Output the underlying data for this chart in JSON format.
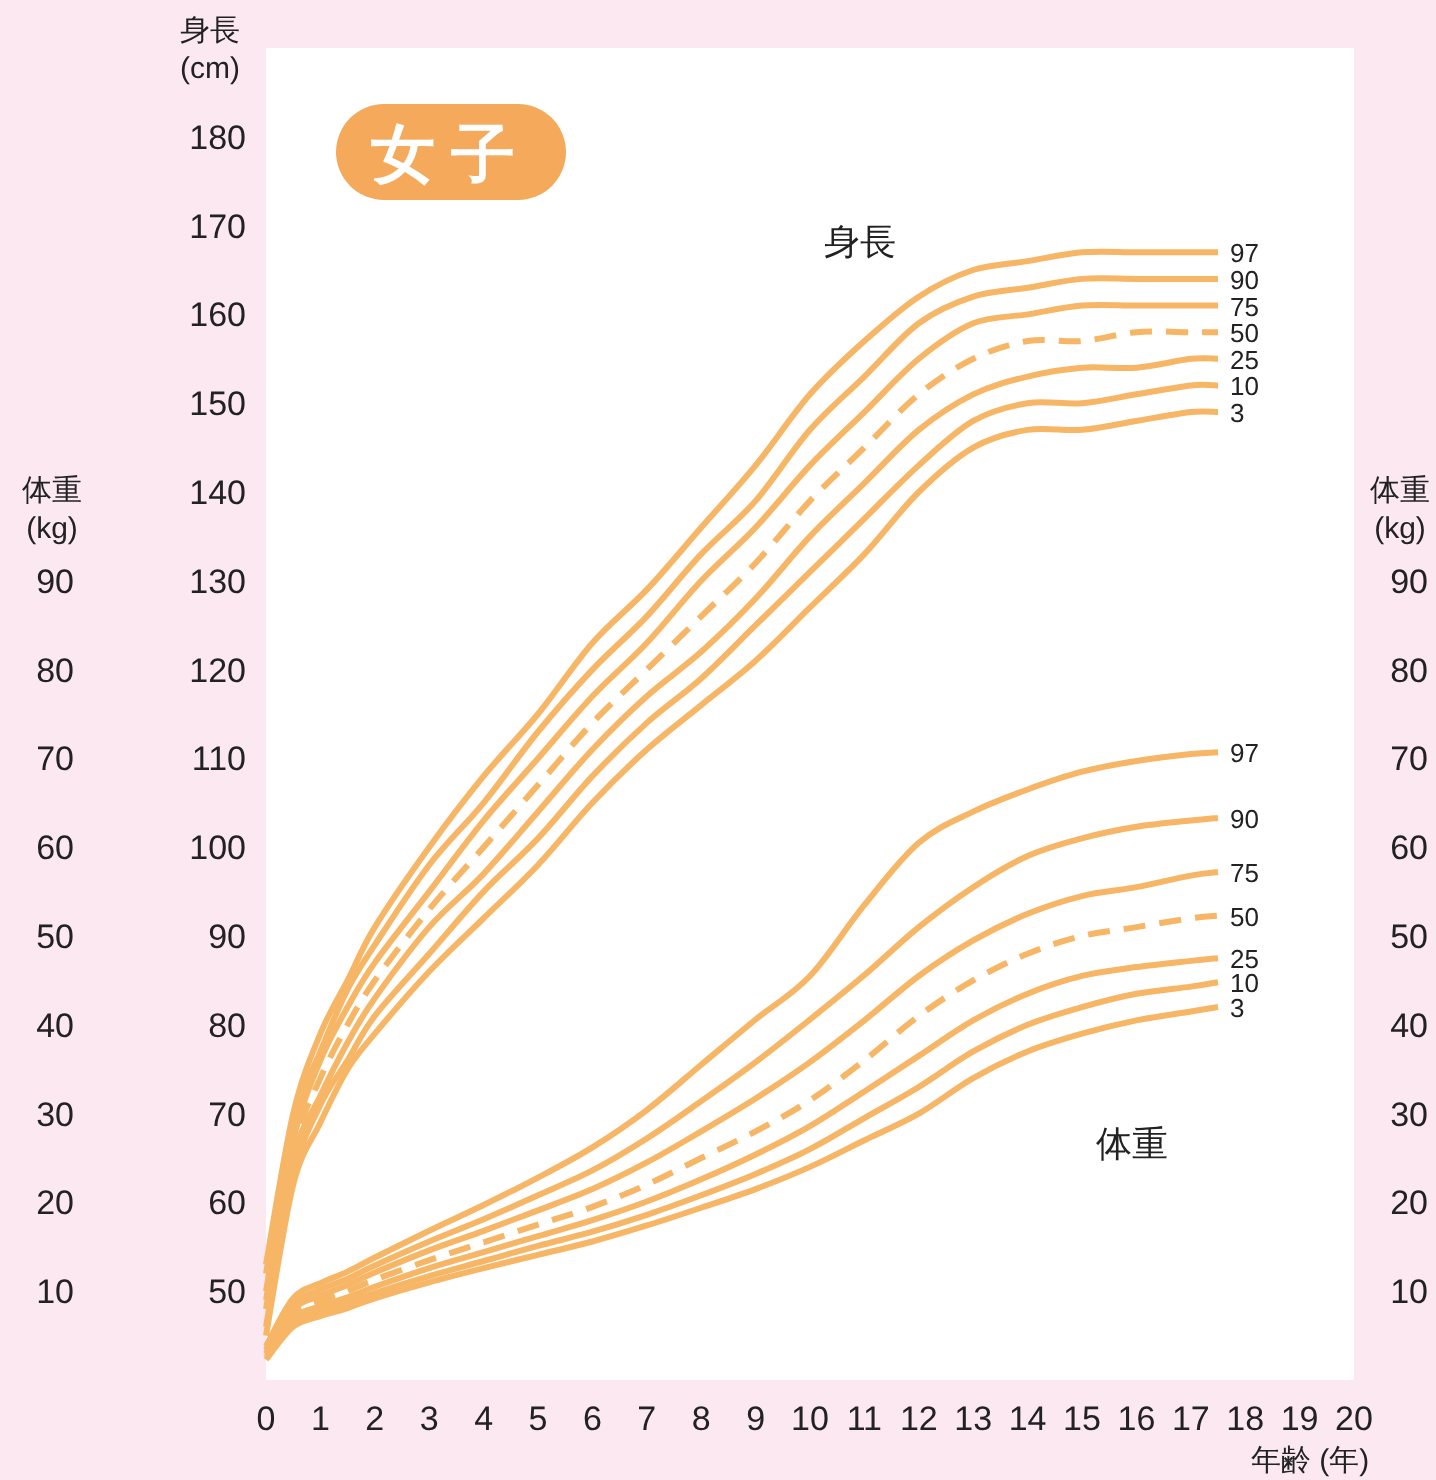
{
  "chart_data": {
    "type": "line",
    "title": "女子",
    "xlabel": "年齢 (年)",
    "ylabel": "身長\n(cm)",
    "y2label": "体重\n(kg)",
    "y3label": "体重\n(kg)",
    "x": [
      0,
      0.5,
      1,
      1.5,
      2,
      3,
      4,
      5,
      6,
      7,
      8,
      9,
      10,
      11,
      12,
      13,
      14,
      15,
      16,
      17,
      17.5
    ],
    "xlim": [
      0,
      20
    ],
    "xticks": [
      0,
      1,
      2,
      3,
      4,
      5,
      6,
      7,
      8,
      9,
      10,
      11,
      12,
      13,
      14,
      15,
      16,
      17,
      18,
      19,
      20
    ],
    "ylim": [
      40,
      190
    ],
    "yticks": [
      50,
      60,
      70,
      80,
      90,
      100,
      110,
      120,
      130,
      140,
      150,
      160,
      170,
      180
    ],
    "y2lim": [
      0,
      150
    ],
    "y2ticks": [
      10,
      20,
      30,
      40,
      50,
      60,
      70,
      80,
      90
    ],
    "y3lim": [
      0,
      150
    ],
    "y3ticks": [
      10,
      20,
      30,
      40,
      50,
      60,
      70,
      80,
      90
    ],
    "legend": false,
    "grid": false,
    "annotations": [
      "身長",
      "体重"
    ],
    "series": [
      {
        "name": "97",
        "color": "#f6b665",
        "axis": "y",
        "line_style": "solid",
        "values": [
          53,
          70,
          79,
          85,
          91,
          100,
          108,
          115,
          123,
          129,
          136,
          143,
          151,
          157,
          162,
          165,
          166,
          167,
          167,
          167,
          167
        ]
      },
      {
        "name": "90",
        "color": "#f6b665",
        "axis": "y",
        "line_style": "solid",
        "values": [
          52,
          69,
          77,
          84,
          89,
          98,
          105,
          113,
          120,
          126,
          133,
          139,
          147,
          153,
          159,
          162,
          163,
          164,
          164,
          164,
          164
        ]
      },
      {
        "name": "75",
        "color": "#f6b665",
        "axis": "y",
        "line_style": "solid",
        "values": [
          50,
          67,
          76,
          82,
          87,
          95,
          103,
          110,
          117,
          123,
          130,
          136,
          143,
          149,
          155,
          159,
          160,
          161,
          161,
          161,
          161
        ]
      },
      {
        "name": "50",
        "color": "#f6b665",
        "axis": "y",
        "line_style": "dashed",
        "values": [
          49,
          66,
          74,
          80,
          85,
          93,
          100,
          107,
          114,
          120,
          126,
          132,
          139,
          145,
          151,
          155,
          157,
          157,
          158,
          158,
          158
        ]
      },
      {
        "name": "25",
        "color": "#f6b665",
        "axis": "y",
        "line_style": "solid",
        "values": [
          48,
          65,
          72,
          78,
          83,
          91,
          97,
          104,
          111,
          117,
          122,
          128,
          135,
          141,
          147,
          151,
          153,
          154,
          154,
          155,
          155
        ]
      },
      {
        "name": "10",
        "color": "#f6b665",
        "axis": "y",
        "line_style": "solid",
        "values": [
          46,
          63,
          71,
          76,
          81,
          88,
          95,
          101,
          108,
          114,
          119,
          125,
          131,
          137,
          143,
          148,
          150,
          150,
          151,
          152,
          152
        ]
      },
      {
        "name": "3",
        "color": "#f6b665",
        "axis": "y",
        "line_style": "solid",
        "values": [
          45,
          62,
          69,
          75,
          79,
          86,
          92,
          98,
          105,
          111,
          116,
          121,
          127,
          133,
          140,
          145,
          147,
          147,
          148,
          149,
          149
        ]
      },
      {
        "name": "97",
        "color": "#f6b665",
        "axis": "y2",
        "line_style": "solid",
        "values": [
          3.8,
          9.2,
          10.9,
          12.2,
          13.8,
          16.8,
          19.7,
          22.8,
          26.2,
          30.4,
          35.5,
          40.6,
          45.5,
          53.5,
          60.5,
          64,
          66.5,
          68.5,
          69.7,
          70.5,
          70.7
        ]
      },
      {
        "name": "90",
        "color": "#f6b665",
        "axis": "y2",
        "line_style": "solid",
        "values": [
          3.5,
          8.5,
          10.2,
          11.4,
          12.9,
          15.6,
          18.1,
          20.8,
          23.6,
          27.2,
          31.4,
          35.8,
          40.6,
          45.6,
          51,
          55.5,
          59,
          61,
          62.3,
          63,
          63.3
        ]
      },
      {
        "name": "75",
        "color": "#f6b665",
        "axis": "y2",
        "line_style": "solid",
        "values": [
          3.3,
          8,
          9.5,
          10.7,
          12.1,
          14.6,
          16.8,
          19.1,
          21.5,
          24.5,
          28,
          31.7,
          35.8,
          40.5,
          45.5,
          49.5,
          52.5,
          54.5,
          55.5,
          56.8,
          57.2
        ]
      },
      {
        "name": "50",
        "color": "#f6b665",
        "axis": "y2",
        "line_style": "dashed",
        "values": [
          3,
          7.5,
          8.9,
          10,
          11.3,
          13.5,
          15.5,
          17.5,
          19.5,
          22,
          25,
          28,
          31.5,
          36,
          41,
          45,
          48,
          50,
          51,
          52,
          52.3
        ]
      },
      {
        "name": "25",
        "color": "#f6b665",
        "axis": "y2",
        "line_style": "solid",
        "values": [
          2.9,
          7,
          8.3,
          9.3,
          10.5,
          12.6,
          14.4,
          16.2,
          18,
          20.1,
          22.6,
          25.4,
          28.6,
          32.5,
          36.5,
          40.5,
          43.5,
          45.5,
          46.5,
          47.2,
          47.5
        ]
      },
      {
        "name": "10",
        "color": "#f6b665",
        "axis": "y2",
        "line_style": "solid",
        "values": [
          2.6,
          6.5,
          7.7,
          8.7,
          9.8,
          11.7,
          13.4,
          15.1,
          16.7,
          18.6,
          20.8,
          23.2,
          26,
          29.5,
          33,
          37,
          40,
          42,
          43.5,
          44.3,
          44.8
        ]
      },
      {
        "name": "3",
        "color": "#f6b665",
        "axis": "y2",
        "line_style": "solid",
        "values": [
          2.3,
          6,
          7.2,
          8.1,
          9.2,
          11,
          12.6,
          14.1,
          15.6,
          17.4,
          19.4,
          21.5,
          24,
          27,
          30,
          34,
          37,
          39,
          40.5,
          41.5,
          42
        ]
      }
    ]
  }
}
